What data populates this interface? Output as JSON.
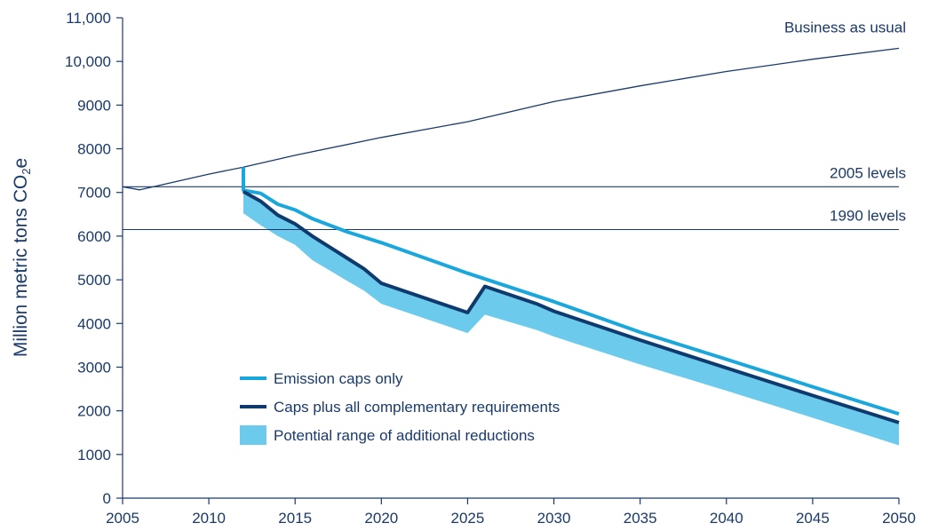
{
  "chart_data": {
    "type": "line",
    "ylabel": "Million metric tons CO",
    "ylabel_sub": "2",
    "ylabel_suffix": "e",
    "xlim": [
      2005,
      2050
    ],
    "ylim": [
      0,
      11000
    ],
    "x_ticks": [
      2005,
      2010,
      2015,
      2020,
      2025,
      2030,
      2035,
      2040,
      2045,
      2050
    ],
    "y_ticks": [
      0,
      1000,
      2000,
      3000,
      4000,
      5000,
      6000,
      7000,
      8000,
      9000,
      10000,
      11000
    ],
    "y_tick_labels": [
      "0",
      "1000",
      "2000",
      "3000",
      "4000",
      "5000",
      "6000",
      "7000",
      "8000",
      "9000",
      "10,000",
      "11,000"
    ],
    "grid": false,
    "colors": {
      "axis": "#1a3a6b",
      "bau": "#1a3a6b",
      "reference": "#1a3a6b",
      "emission_caps": "#1aa7dc",
      "caps_plus": "#0f3a6e",
      "range_fill": "#6ccbec"
    },
    "series": [
      {
        "name": "Business as usual",
        "key": "bau",
        "x": [
          2005,
          2006,
          2010,
          2012,
          2015,
          2020,
          2025,
          2030,
          2035,
          2040,
          2045,
          2050
        ],
        "values": [
          7130,
          7060,
          7420,
          7580,
          7850,
          8260,
          8620,
          9080,
          9440,
          9770,
          10050,
          10300
        ]
      },
      {
        "name": "2005 levels",
        "key": "reference",
        "x": [
          2005,
          2050
        ],
        "values": [
          7130,
          7130
        ]
      },
      {
        "name": "1990 levels",
        "key": "reference",
        "x": [
          2005,
          2050
        ],
        "values": [
          6150,
          6150
        ]
      },
      {
        "name": "Emission caps only",
        "key": "emission_caps",
        "x": [
          2012,
          2012,
          2013,
          2014,
          2015,
          2016,
          2018,
          2020,
          2025,
          2030,
          2035,
          2040,
          2045,
          2050
        ],
        "values": [
          7580,
          7050,
          6980,
          6730,
          6600,
          6400,
          6100,
          5850,
          5150,
          4500,
          3800,
          3180,
          2550,
          1930
        ]
      },
      {
        "name": "Caps plus all complementary requirements",
        "key": "caps_plus",
        "x": [
          2012,
          2013,
          2014,
          2015,
          2016,
          2018,
          2019,
          2020,
          2025,
          2026,
          2029,
          2030,
          2035,
          2040,
          2045,
          2050
        ],
        "values": [
          7020,
          6800,
          6480,
          6280,
          6000,
          5500,
          5250,
          4920,
          4250,
          4850,
          4450,
          4280,
          3620,
          2980,
          2350,
          1730
        ]
      }
    ],
    "range": {
      "name": "Potential range of additional reductions",
      "key": "range_fill",
      "x": [
        2012,
        2013,
        2014,
        2015,
        2016,
        2018,
        2019,
        2020,
        2025,
        2026,
        2029,
        2030,
        2035,
        2040,
        2045,
        2050
      ],
      "upper": [
        7020,
        6800,
        6480,
        6280,
        6000,
        5500,
        5250,
        4920,
        4250,
        4850,
        4450,
        4280,
        3620,
        2980,
        2350,
        1730
      ],
      "lower": [
        6520,
        6250,
        6000,
        5800,
        5450,
        4980,
        4750,
        4450,
        3780,
        4200,
        3850,
        3700,
        3060,
        2460,
        1840,
        1210
      ]
    },
    "annotations": [
      {
        "text": "Business as usual",
        "x": 2050,
        "y": 10300
      },
      {
        "text": "2005 levels",
        "x": 2050,
        "y": 7130
      },
      {
        "text": "1990 levels",
        "x": 2050,
        "y": 6150
      }
    ],
    "legend": {
      "placement": "lower-left",
      "items": [
        {
          "label": "Emission caps only",
          "kind": "line",
          "key": "emission_caps"
        },
        {
          "label": "Caps plus all complementary requirements",
          "kind": "line",
          "key": "caps_plus"
        },
        {
          "label": "Potential range of additional reductions",
          "kind": "box",
          "key": "range_fill"
        }
      ]
    }
  }
}
